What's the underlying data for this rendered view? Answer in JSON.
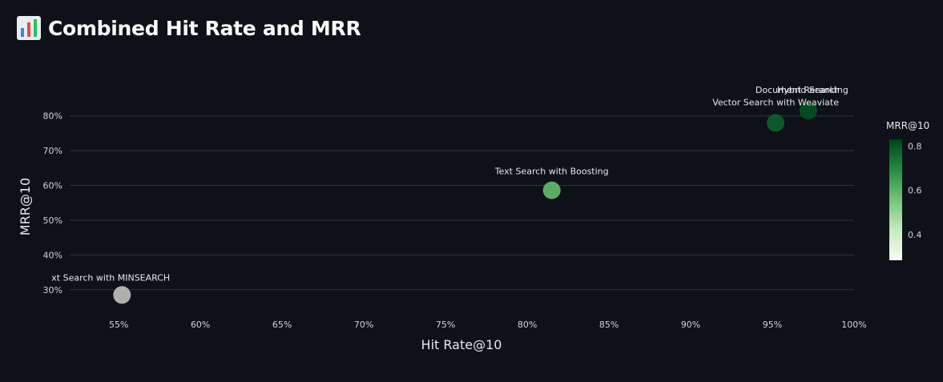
{
  "header": {
    "icon": "bar-chart-icon",
    "title": "Combined Hit Rate and MRR"
  },
  "colors": {
    "background": "#0e1117",
    "grid": "#2f3541",
    "text": "#e6e8eb",
    "scale_low": "#f7fcf5",
    "scale_mid": "#74c476",
    "scale_high": "#00441b"
  },
  "chart_data": {
    "type": "scatter",
    "title": "Combined Hit Rate and MRR",
    "xlabel": "Hit Rate@10",
    "ylabel": "MRR@10",
    "xlim": [
      0.52,
      1.0
    ],
    "ylim": [
      0.235,
      0.88
    ],
    "x_ticks": [
      {
        "value": 0.55,
        "label": "55%"
      },
      {
        "value": 0.6,
        "label": "60%"
      },
      {
        "value": 0.65,
        "label": "65%"
      },
      {
        "value": 0.7,
        "label": "70%"
      },
      {
        "value": 0.75,
        "label": "75%"
      },
      {
        "value": 0.8,
        "label": "80%"
      },
      {
        "value": 0.85,
        "label": "85%"
      },
      {
        "value": 0.9,
        "label": "90%"
      },
      {
        "value": 0.95,
        "label": "95%"
      },
      {
        "value": 1.0,
        "label": "100%"
      }
    ],
    "y_ticks": [
      {
        "value": 0.3,
        "label": "30%"
      },
      {
        "value": 0.4,
        "label": "40%"
      },
      {
        "value": 0.5,
        "label": "50%"
      },
      {
        "value": 0.6,
        "label": "60%"
      },
      {
        "value": 0.7,
        "label": "70%"
      },
      {
        "value": 0.8,
        "label": "80%"
      }
    ],
    "grid": "horizontal",
    "points": [
      {
        "name": "Text Search with MINSEARCH",
        "label": "xt Search with MINSEARCH",
        "x": 0.552,
        "y": 0.285
      },
      {
        "name": "Text Search with Boosting",
        "label": "Text Search with Boosting",
        "x": 0.815,
        "y": 0.586
      },
      {
        "name": "Vector Search with Weaviate",
        "label": "Vector Search with Weaviate",
        "x": 0.952,
        "y": 0.78
      },
      {
        "name": "Hybrid Search",
        "label": "Hybrid Search",
        "x": 0.972,
        "y": 0.815
      },
      {
        "name": "Document Reranking",
        "label": "Document Reranking",
        "x": 0.972,
        "y": 0.815
      }
    ],
    "colorbar": {
      "title": "MRR@10",
      "min": 0.285,
      "max": 0.83,
      "ticks": [
        {
          "value": 0.4,
          "label": "0.4"
        },
        {
          "value": 0.6,
          "label": "0.6"
        },
        {
          "value": 0.8,
          "label": "0.8"
        }
      ]
    },
    "legend": "colorbar-right"
  }
}
